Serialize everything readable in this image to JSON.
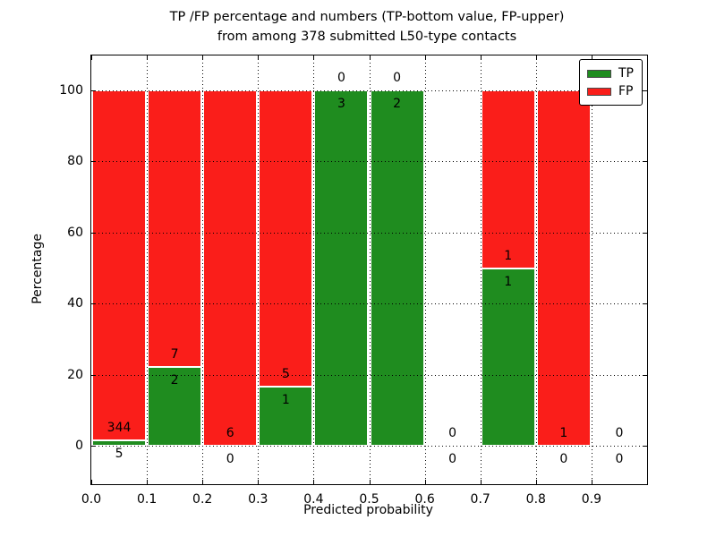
{
  "figure": {
    "title_line1": "TP /FP percentage and numbers (TP-bottom value, FP-upper)",
    "title_line2": "from among 378 submitted L50-type contacts",
    "xlabel": "Predicted probability",
    "ylabel": "Percentage"
  },
  "legend": {
    "items": [
      {
        "label": "TP",
        "color": "#1f8c1f"
      },
      {
        "label": "FP",
        "color": "#fa1e1a"
      }
    ]
  },
  "chart_data": {
    "type": "bar",
    "stacked": true,
    "title": "TP /FP percentage and numbers (TP-bottom value, FP-upper) from among 378 submitted L50-type contacts",
    "xlabel": "Predicted probability",
    "ylabel": "Percentage",
    "xlim": [
      0.0,
      1.0
    ],
    "ylim": [
      -10.8,
      109.8
    ],
    "x_ticks": [
      "0.0",
      "0.1",
      "0.2",
      "0.3",
      "0.4",
      "0.5",
      "0.6",
      "0.7",
      "0.8",
      "0.9"
    ],
    "y_ticks": [
      0,
      20,
      40,
      60,
      80,
      100
    ],
    "grid": "dotted",
    "legend_position": "upper right",
    "bin_width": 0.1,
    "bins": [
      {
        "start": 0.0,
        "tp": 5,
        "fp": 344
      },
      {
        "start": 0.1,
        "tp": 2,
        "fp": 7
      },
      {
        "start": 0.2,
        "tp": 0,
        "fp": 6
      },
      {
        "start": 0.3,
        "tp": 1,
        "fp": 5
      },
      {
        "start": 0.4,
        "tp": 3,
        "fp": 0
      },
      {
        "start": 0.5,
        "tp": 2,
        "fp": 0
      },
      {
        "start": 0.6,
        "tp": 0,
        "fp": 0
      },
      {
        "start": 0.7,
        "tp": 1,
        "fp": 1
      },
      {
        "start": 0.8,
        "tp": 0,
        "fp": 1
      },
      {
        "start": 0.9,
        "tp": 0,
        "fp": 0
      }
    ],
    "series": [
      {
        "name": "TP",
        "color": "#1f8c1f",
        "values_percent": [
          1.43,
          22.22,
          0,
          16.67,
          100,
          100,
          0,
          50,
          0,
          0
        ]
      },
      {
        "name": "FP",
        "color": "#fa1e1a",
        "values_percent": [
          98.57,
          77.78,
          100,
          83.33,
          0,
          0,
          0,
          50,
          100,
          0
        ]
      }
    ]
  }
}
